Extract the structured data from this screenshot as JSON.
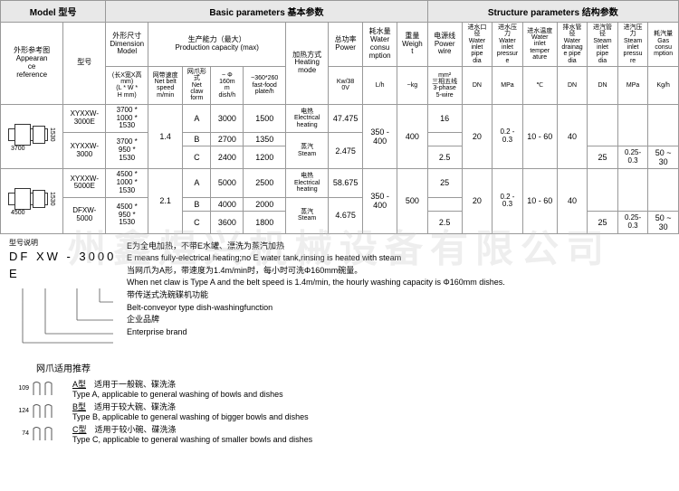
{
  "headers": {
    "model": "Model  型号",
    "basic": "Basic parameters  基本参数",
    "structure": "Structure parameters  结构参数",
    "appearance": "外形参考图\nAppearan\nce\nreference",
    "model_col": "型号",
    "dimension": "外形尺寸\nDimension\nModel",
    "dim_sub": "(长X宽X高mm)\n(L * W *\nH mm)",
    "prod_cap": "生产能力（最大）\nProduction capacity (max)",
    "belt_speed": "网带速度\nNet belt\nspeed\nm/min",
    "claw_form": "网爪形式\nNet claw\nform",
    "dish_160": "~ Φ\n160m\nm\ndish/h",
    "plate_360": "~360*260\nfast-food\nplate/h",
    "heating": "加热方式\nHeating\nmode",
    "power": "总功率\nPower",
    "power_unit": "Kw/38\n0V",
    "water_cons": "耗水量\nWater\nconsu\nmption",
    "water_unit": "L/h",
    "weight": "重量\nWeigh\nt",
    "weight_unit": "~kg",
    "power_wire": "电源线\nPower\nwire",
    "wire_unit": "mm²\n三相五线\n3-phase\n5-wire",
    "inlet_dia": "进水口径\nWater\ninlet\npipe\ndia",
    "dn": "DN",
    "inlet_press": "进水压力\nWater\ninlet\npressur\ne",
    "mpa": "MPa",
    "inlet_temp": "进水温度\nWater\ninlet\ntemper\nature",
    "celsius": "℃",
    "drain_dia": "排水管径\nWater\ndrainag\ne pipe\ndia",
    "steam_in_dia": "进汽管径\nSteam\ninlet\npipe\ndia",
    "steam_press": "进汽压力\nSteam\ninlet\npressu\nre",
    "gas_cons": "耗汽量\nGas\nconsu\nmption",
    "kgh": "Kg/h"
  },
  "rows": [
    {
      "drawing_dim_w": "3700",
      "drawing_dim_h": "1530",
      "models": [
        "XYXXW-\n3000E",
        "XYXXW-\n3000"
      ],
      "dims": [
        "3700 *\n1000 *\n1530",
        "3700 *\n950 *\n1530"
      ],
      "belt": "1.4",
      "sub": [
        {
          "claw": "A",
          "d160": "3000",
          "p360": "1500",
          "heat": "电热\nElectrical\nheating",
          "pow": "47.475"
        },
        {
          "claw": "B",
          "d160": "2700",
          "p360": "1350",
          "heat": "蒸汽\nSteam",
          "pow": "2.475"
        },
        {
          "claw": "C",
          "d160": "2400",
          "p360": "1200",
          "heat": "",
          "pow": ""
        }
      ],
      "water": "350 - 400",
      "weight": "400",
      "wires": [
        "16",
        "",
        "2.5"
      ],
      "inlet_dia": "20",
      "inlet_press": "0.2 -\n0.3",
      "temp": "10 - 60",
      "drain": "40",
      "steam": [
        {
          "dia": "",
          "press": "",
          "gas": ""
        },
        {
          "dia": "25",
          "press": "0.25-\n0.3",
          "gas": "50 ~ 30"
        }
      ]
    },
    {
      "drawing_dim_w": "4500",
      "drawing_dim_h": "1530",
      "models": [
        "XYXXW-\n5000E",
        "DFXW-\n5000"
      ],
      "dims": [
        "4500 *\n1000 *\n1530",
        "4500 *\n950 *\n1530"
      ],
      "belt": "2.1",
      "sub": [
        {
          "claw": "A",
          "d160": "5000",
          "p360": "2500",
          "heat": "电热\nElectrical\nheating",
          "pow": "58.675"
        },
        {
          "claw": "B",
          "d160": "4000",
          "p360": "2000",
          "heat": "蒸汽\nSteam",
          "pow": "4.675"
        },
        {
          "claw": "C",
          "d160": "3600",
          "p360": "1800",
          "heat": "",
          "pow": ""
        }
      ],
      "water": "350 - 400",
      "weight": "500",
      "wires": [
        "25",
        "",
        "2.5"
      ],
      "inlet_dia": "20",
      "inlet_press": "0.2 -\n0.3",
      "temp": "10 - 60",
      "drain": "40",
      "steam": [
        {
          "dia": "",
          "press": "",
          "gas": ""
        },
        {
          "dia": "25",
          "press": "0.25-\n0.3",
          "gas": "50 ~ 30"
        }
      ]
    }
  ],
  "notes": {
    "model_label": "型号说明",
    "model_example": "DF   XW - 3000   E",
    "lines": [
      "E为全电加热，不带E水罐、漂洗为蒸汽加热",
      "E means fully-electrical heating;no E water tank,rinsing is heated with steam",
      "当网爪为A形，带速度为1.4m/min时，每小时可洗Φ160mm碗量。",
      "When net claw is Type A and the belt speed is 1.4m/min, the hourly washing capacity is Φ160mm dishes.",
      "带传送式洗碗碟机功能",
      "Belt-conveyor type dish-washingfunction",
      "企业品牌",
      "Enterprise brand"
    ],
    "claw_title": "网爪适用推荐",
    "claws": [
      {
        "dim": "109",
        "label": "A型",
        "zh": "适用于一般碗、碟洗涤",
        "en": "Type A, applicable to general washing of bowls and dishes"
      },
      {
        "dim": "124",
        "label": "B型",
        "zh": "适用于较大碗、碟洗涤",
        "en": "Type B, applicable to general washing of bigger bowls and dishes"
      },
      {
        "dim": "74",
        "label": "C型",
        "zh": "适用于较小碗、碟洗涤",
        "en": "Type C, applicable to general washing of smaller bowls and dishes"
      }
    ]
  },
  "watermark": "州鑫煜兴机械设备有限公司"
}
